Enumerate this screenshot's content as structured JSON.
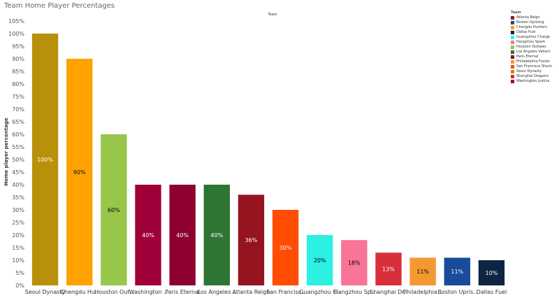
{
  "page": {
    "title": "Team Home Player Percentages"
  },
  "chart_data": {
    "type": "bar",
    "title": "Team Home Player Percentages",
    "column_header": "Team",
    "ylabel": "Home player percentage",
    "xlabel": "",
    "ylim": [
      0,
      105
    ],
    "yticks": [
      "0%",
      "5%",
      "10%",
      "15%",
      "20%",
      "25%",
      "30%",
      "35%",
      "40%",
      "45%",
      "50%",
      "55%",
      "60%",
      "65%",
      "70%",
      "75%",
      "80%",
      "85%",
      "90%",
      "95%",
      "100%",
      "105%"
    ],
    "grid": false,
    "categories": [
      "Seoul Dynasty",
      "Chengdu Hu..",
      "Houston Out..",
      "Washington ..",
      "Paris Eternal",
      "Los Angeles ..",
      "Atlanta Reign",
      "San Francisc..",
      "Guangzhou C..",
      "Hangzhou Sp..",
      "Shanghai Dr..",
      "Philadelphia ..",
      "Boston Upris..",
      "Dallas Fuel"
    ],
    "values": [
      100,
      90,
      60,
      40,
      40,
      40,
      36,
      30,
      20,
      18,
      13,
      11,
      11,
      10
    ],
    "data_labels": [
      "100%",
      "90%",
      "60%",
      "40%",
      "40%",
      "40%",
      "36%",
      "30%",
      "20%",
      "18%",
      "13%",
      "11%",
      "11%",
      "10%"
    ],
    "colors": [
      "#b8900a",
      "#ffa200",
      "#98c64a",
      "#a0003a",
      "#8e0030",
      "#2e7433",
      "#95141f",
      "#ff4d04",
      "#2cf0e2",
      "#f97497",
      "#d8303a",
      "#f49932",
      "#1a4a9a",
      "#0d2442"
    ],
    "label_colors": [
      "#ffffff",
      "#000000",
      "#000000",
      "#ffffff",
      "#ffffff",
      "#ffffff",
      "#ffffff",
      "#ffffff",
      "#000000",
      "#000000",
      "#ffffff",
      "#000000",
      "#ffffff",
      "#ffffff"
    ],
    "legend": {
      "title": "Team",
      "position": "top-right",
      "items": [
        {
          "name": "Atlanta Reign",
          "color": "#95141f"
        },
        {
          "name": "Boston Uprising",
          "color": "#1a4a9a"
        },
        {
          "name": "Chengdu Hunters",
          "color": "#ffa200"
        },
        {
          "name": "Dallas Fuel",
          "color": "#0d2442"
        },
        {
          "name": "Guangzhou Charge",
          "color": "#2cf0e2"
        },
        {
          "name": "Hangzhou Spark",
          "color": "#f97497"
        },
        {
          "name": "Houston Outlaws",
          "color": "#98c64a"
        },
        {
          "name": "Los Angeles Valiant",
          "color": "#2e7433"
        },
        {
          "name": "Paris Eternal",
          "color": "#8e0030"
        },
        {
          "name": "Philadelphia Fusion",
          "color": "#f49932"
        },
        {
          "name": "San Francisco Shock",
          "color": "#ff4d04"
        },
        {
          "name": "Seoul Dynasty",
          "color": "#b8900a"
        },
        {
          "name": "Shanghai Dragons",
          "color": "#d8303a"
        },
        {
          "name": "Washington Justice",
          "color": "#a0003a"
        }
      ]
    }
  }
}
